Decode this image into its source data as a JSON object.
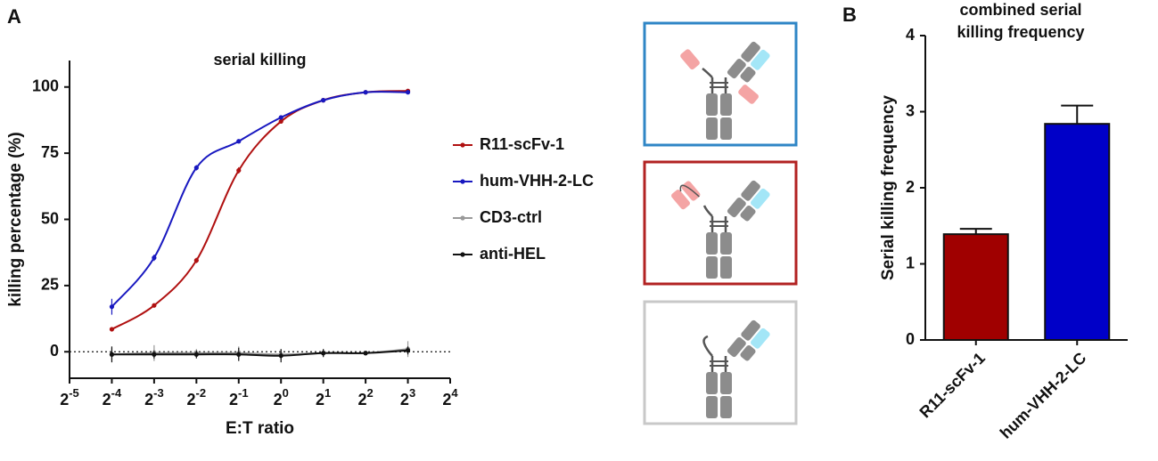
{
  "chart_data": [
    {
      "panel": "A",
      "type": "line",
      "title": "serial killing",
      "xlabel": "E:T ratio",
      "ylabel": "killing percentage (%)",
      "xscale": "log2",
      "x": [
        0.0625,
        0.125,
        0.25,
        0.5,
        1,
        2,
        4,
        8
      ],
      "xlim": [
        0.03125,
        16
      ],
      "xticks": [
        {
          "value": 0.03125,
          "label": "2^-5"
        },
        {
          "value": 0.0625,
          "label": "2^-4"
        },
        {
          "value": 0.125,
          "label": "2^-3"
        },
        {
          "value": 0.25,
          "label": "2^-2"
        },
        {
          "value": 0.5,
          "label": "2^-1"
        },
        {
          "value": 1,
          "label": "2^0"
        },
        {
          "value": 2,
          "label": "2^1"
        },
        {
          "value": 4,
          "label": "2^2"
        },
        {
          "value": 8,
          "label": "2^3"
        },
        {
          "value": 16,
          "label": "2^4"
        }
      ],
      "ylim": [
        -10,
        110
      ],
      "yticks": [
        0,
        25,
        50,
        75,
        100
      ],
      "zero_line": true,
      "series": [
        {
          "name": "R11-scFv-1",
          "color": "#b01010",
          "values": [
            8.5,
            17.5,
            34.5,
            68.5,
            87,
            95,
            98,
            98.5
          ],
          "errors": [
            0.5,
            0.8,
            1,
            1.2,
            0.8,
            0.5,
            0.4,
            0.6
          ]
        },
        {
          "name": "hum-VHH-2-LC",
          "color": "#1818c0",
          "values": [
            17,
            35.5,
            69.5,
            79.5,
            88.5,
            95,
            98,
            98
          ],
          "errors": [
            3,
            1.2,
            1,
            0.5,
            0.6,
            0.5,
            0.4,
            0.5
          ]
        },
        {
          "name": "CD3-ctrl",
          "color": "#999999",
          "values": [
            -1,
            -0.5,
            -0.5,
            -0.5,
            -1,
            -0.5,
            -0.5,
            1
          ],
          "errors": [
            2.5,
            3,
            1.5,
            2.5,
            2,
            1.5,
            0.5,
            3
          ]
        },
        {
          "name": "anti-HEL",
          "color": "#111111",
          "values": [
            -1,
            -1,
            -1,
            -1,
            -1.5,
            -0.5,
            -0.5,
            0.5
          ],
          "errors": [
            3,
            1.5,
            1.5,
            2.5,
            2.5,
            1.5,
            0.5,
            1.5
          ]
        }
      ]
    },
    {
      "panel": "B",
      "type": "bar",
      "title": [
        "combined serial",
        "killing frequency"
      ],
      "ylabel": "Serial killing frequency",
      "categories": [
        "R11-scFv-1",
        "hum-VHH-2-LC"
      ],
      "values": [
        1.39,
        2.84
      ],
      "errors": [
        0.07,
        0.24
      ],
      "colors": [
        "#a00000",
        "#0000c8"
      ],
      "ylim": [
        0,
        4
      ],
      "yticks": [
        0,
        1,
        2,
        3,
        4
      ]
    }
  ]
}
